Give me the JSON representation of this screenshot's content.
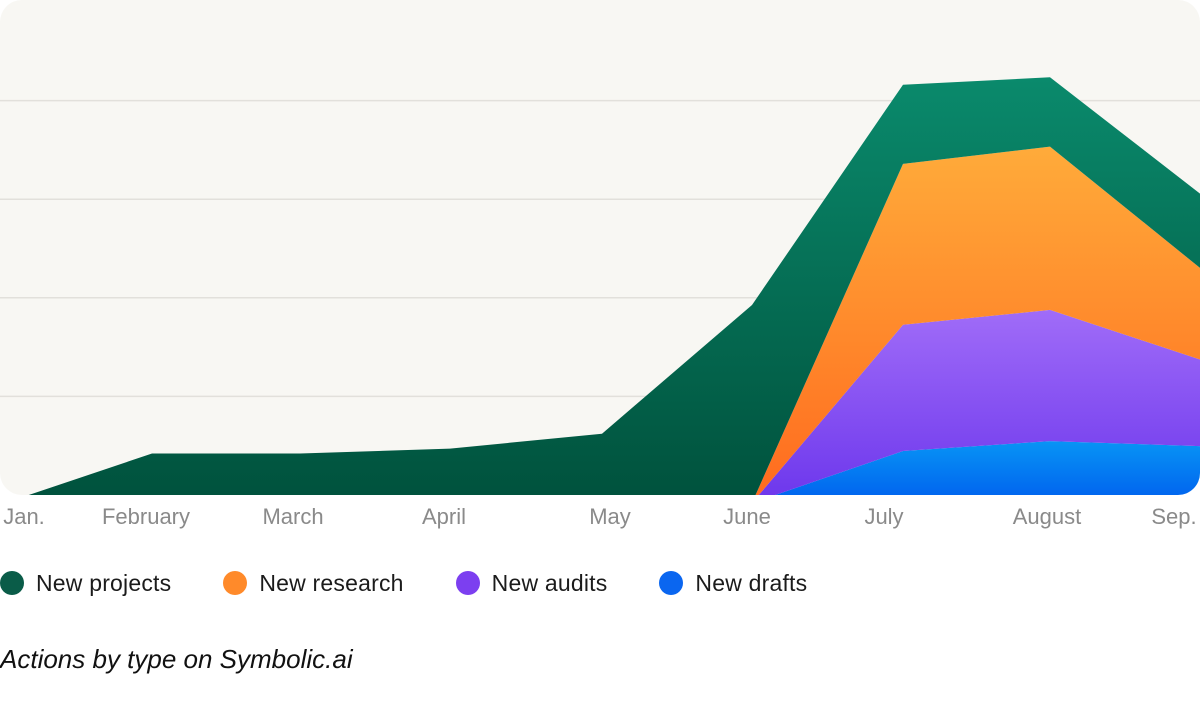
{
  "chart_data": {
    "type": "area",
    "stacked": true,
    "categories": [
      "Jan.",
      "February",
      "March",
      "April",
      "May",
      "June",
      "July",
      "August",
      "Sep."
    ],
    "ylim": [
      0,
      100
    ],
    "grid": true,
    "series": [
      {
        "name": "New drafts",
        "color": "#0a66f0",
        "values": [
          0,
          0,
          0,
          0,
          0,
          0,
          10.5,
          12.5,
          11.5
        ]
      },
      {
        "name": "New audits",
        "color": "#7c3ff0",
        "values": [
          0,
          0,
          0,
          0,
          0,
          0,
          25.5,
          26.5,
          17.5
        ]
      },
      {
        "name": "New research",
        "color": "#ff8a2a",
        "values": [
          0,
          0,
          0,
          0,
          0,
          0,
          32.5,
          33,
          18.5
        ]
      },
      {
        "name": "New projects",
        "color": "#0a5c48",
        "values": [
          0,
          10,
          10,
          11,
          14,
          40,
          16,
          14,
          15
        ]
      }
    ],
    "legend_order": [
      "New projects",
      "New research",
      "New audits",
      "New drafts"
    ],
    "legend_position": "bottom-left",
    "caption": "Actions by type on Symbolic.ai"
  }
}
